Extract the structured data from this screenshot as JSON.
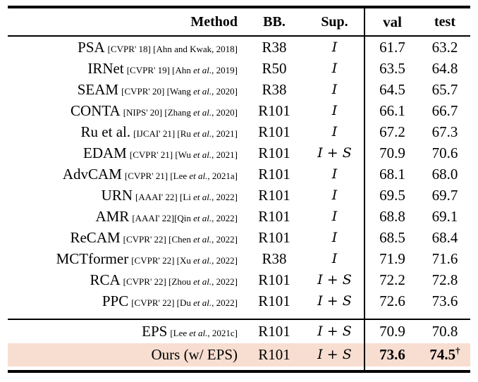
{
  "table": {
    "colors": {
      "highlight": "#f7ded1",
      "rule": "#000000"
    },
    "header": {
      "method": "Method",
      "bb": "BB.",
      "sup": "Sup.",
      "val": "val",
      "test": "test"
    },
    "rows": [
      {
        "method": "PSA",
        "cite_pre": "[CVPR' 18] [Ahn and Kwak, 2018]",
        "cite_it": "",
        "cite_post": "",
        "bb": "R38",
        "sup": "I",
        "val": "61.7",
        "test": "63.2"
      },
      {
        "method": "IRNet",
        "cite_pre": "[CVPR' 19] [Ahn ",
        "cite_it": "et al.",
        "cite_post": ", 2019]",
        "bb": "R50",
        "sup": "I",
        "val": "63.5",
        "test": "64.8"
      },
      {
        "method": "SEAM",
        "cite_pre": "[CVPR' 20] [Wang ",
        "cite_it": "et al.",
        "cite_post": ", 2020]",
        "bb": "R38",
        "sup": "I",
        "val": "64.5",
        "test": "65.7"
      },
      {
        "method": "CONTA",
        "cite_pre": "[NIPS' 20] [Zhang ",
        "cite_it": "et al.",
        "cite_post": ", 2020]",
        "bb": "R101",
        "sup": "I",
        "val": "66.1",
        "test": "66.7"
      },
      {
        "method": "Ru et al.",
        "cite_pre": "[IJCAI' 21] [Ru ",
        "cite_it": "et al.",
        "cite_post": ", 2021]",
        "bb": "R101",
        "sup": "I",
        "val": "67.2",
        "test": "67.3"
      },
      {
        "method": "EDAM",
        "cite_pre": "[CVPR' 21] [Wu ",
        "cite_it": "et al.",
        "cite_post": ", 2021]",
        "bb": "R101",
        "sup": "I + S",
        "val": "70.9",
        "test": "70.6"
      },
      {
        "method": "AdvCAM",
        "cite_pre": "[CVPR' 21] [Lee ",
        "cite_it": "et al.",
        "cite_post": ", 2021a]",
        "bb": "R101",
        "sup": "I",
        "val": "68.1",
        "test": "68.0"
      },
      {
        "method": "URN",
        "cite_pre": "[AAAI' 22] [Li ",
        "cite_it": "et al.",
        "cite_post": ", 2022]",
        "bb": "R101",
        "sup": "I",
        "val": "69.5",
        "test": "69.7"
      },
      {
        "method": "AMR",
        "cite_pre": "[AAAI' 22][Qin ",
        "cite_it": "et al.",
        "cite_post": ", 2022]",
        "bb": "R101",
        "sup": "I",
        "val": "68.8",
        "test": "69.1"
      },
      {
        "method": "ReCAM",
        "cite_pre": "[CVPR' 22] [Chen ",
        "cite_it": "et al.",
        "cite_post": ", 2022]",
        "bb": "R101",
        "sup": "I",
        "val": "68.5",
        "test": "68.4"
      },
      {
        "method": "MCTformer",
        "cite_pre": "[CVPR' 22] [Xu ",
        "cite_it": "et al.",
        "cite_post": ", 2022]",
        "bb": "R38",
        "sup": "I",
        "val": "71.9",
        "test": "71.6"
      },
      {
        "method": "RCA",
        "cite_pre": "[CVPR' 22] [Zhou ",
        "cite_it": "et al.",
        "cite_post": ", 2022]",
        "bb": "R101",
        "sup": "I + S",
        "val": "72.2",
        "test": "72.8"
      },
      {
        "method": "PPC",
        "cite_pre": "[CVPR' 22] [Du ",
        "cite_it": "et al.",
        "cite_post": ", 2022]",
        "bb": "R101",
        "sup": "I + S",
        "val": "72.6",
        "test": "73.6"
      }
    ],
    "bottom_rows": [
      {
        "method": "EPS",
        "cite_pre": "[Lee ",
        "cite_it": "et al.",
        "cite_post": ", 2021c]",
        "bb": "R101",
        "sup": "I + S",
        "val": "70.9",
        "test": "70.8",
        "test_sup": ""
      },
      {
        "method": "Ours (w/ EPS)",
        "cite_pre": "",
        "cite_it": "",
        "cite_post": "",
        "bb": "R101",
        "sup": "I + S",
        "val": "73.6",
        "test": "74.5",
        "test_sup": "†"
      }
    ]
  }
}
